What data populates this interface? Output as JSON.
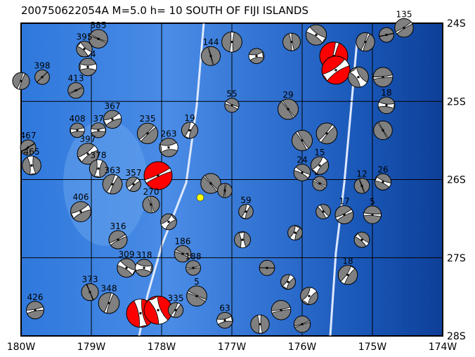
{
  "title": "200750622054A M=5.0 h= 10 SOUTH OF FIJI ISLANDS",
  "map": {
    "lon_range": [
      -180,
      -174
    ],
    "lat_range": [
      -28,
      -24
    ],
    "lon_ticks": [
      "180W",
      "179W",
      "178W",
      "177W",
      "176W",
      "175W",
      "174W"
    ],
    "lat_ticks": [
      "24S",
      "25S",
      "26S",
      "27S",
      "28S"
    ],
    "grid": true,
    "colors": {
      "shallow": "#5a9ae8",
      "deep": "#1448a8",
      "compression": "#808080",
      "latest_event": "#ff0000",
      "epicenter": "#ffff00",
      "trench": "#dde8ff"
    }
  },
  "epicenter": {
    "lon": -177.45,
    "lat": -26.23
  },
  "events": [
    {
      "lon": -179.05,
      "lat": -24.56,
      "label": "384"
    },
    {
      "lon": -179.22,
      "lat": -24.86,
      "label": "413"
    },
    {
      "lon": -179.7,
      "lat": -24.69,
      "label": "398"
    },
    {
      "lon": -180.0,
      "lat": -24.74,
      "label": ""
    },
    {
      "lon": -178.9,
      "lat": -24.2,
      "label": "385"
    },
    {
      "lon": -179.1,
      "lat": -24.33,
      "label": "395"
    },
    {
      "lon": -178.7,
      "lat": -25.23,
      "label": "367"
    },
    {
      "lon": -179.2,
      "lat": -25.37,
      "label": "408"
    },
    {
      "lon": -178.9,
      "lat": -25.37,
      "label": "37"
    },
    {
      "lon": -179.9,
      "lat": -25.59,
      "label": "467"
    },
    {
      "lon": -179.85,
      "lat": -25.82,
      "label": "465"
    },
    {
      "lon": -179.05,
      "lat": -25.67,
      "label": "397"
    },
    {
      "lon": -178.9,
      "lat": -25.86,
      "label": "378"
    },
    {
      "lon": -178.7,
      "lat": -26.06,
      "label": "363"
    },
    {
      "lon": -178.4,
      "lat": -26.06,
      "label": "357"
    },
    {
      "lon": -179.15,
      "lat": -26.41,
      "label": "406"
    },
    {
      "lon": -178.62,
      "lat": -26.77,
      "label": "316"
    },
    {
      "lon": -178.5,
      "lat": -27.13,
      "label": "309"
    },
    {
      "lon": -178.25,
      "lat": -27.13,
      "label": "318"
    },
    {
      "lon": -179.02,
      "lat": -27.44,
      "label": "373"
    },
    {
      "lon": -178.75,
      "lat": -27.58,
      "label": "348"
    },
    {
      "lon": -179.8,
      "lat": -27.67,
      "label": "426"
    },
    {
      "lon": -178.05,
      "lat": -25.95,
      "label": "",
      "red": true
    },
    {
      "lon": -178.3,
      "lat": -27.71,
      "label": "",
      "red": true
    },
    {
      "lon": -178.05,
      "lat": -27.67,
      "label": "",
      "red": true
    },
    {
      "lon": -175.55,
      "lat": -24.42,
      "label": "",
      "red": true
    },
    {
      "lon": -175.52,
      "lat": -24.6,
      "label": "",
      "red": true
    },
    {
      "lon": -178.2,
      "lat": -25.41,
      "label": "235"
    },
    {
      "lon": -177.9,
      "lat": -25.59,
      "label": "263"
    },
    {
      "lon": -177.6,
      "lat": -25.37,
      "label": "19"
    },
    {
      "lon": -178.15,
      "lat": -26.32,
      "label": "270"
    },
    {
      "lon": -177.9,
      "lat": -26.54,
      "label": ""
    },
    {
      "lon": -177.7,
      "lat": -26.95,
      "label": "186"
    },
    {
      "lon": -177.55,
      "lat": -27.13,
      "label": "188"
    },
    {
      "lon": -177.5,
      "lat": -27.49,
      "label": "5"
    },
    {
      "lon": -177.8,
      "lat": -27.67,
      "label": "335"
    },
    {
      "lon": -177.1,
      "lat": -27.8,
      "label": "63"
    },
    {
      "lon": -177.3,
      "lat": -24.42,
      "label": "144"
    },
    {
      "lon": -177.0,
      "lat": -24.24,
      "label": ""
    },
    {
      "lon": -176.65,
      "lat": -24.42,
      "label": ""
    },
    {
      "lon": -177.0,
      "lat": -25.05,
      "label": "55"
    },
    {
      "lon": -177.3,
      "lat": -26.05,
      "label": ""
    },
    {
      "lon": -177.1,
      "lat": -26.14,
      "label": ""
    },
    {
      "lon": -176.8,
      "lat": -26.41,
      "label": "59"
    },
    {
      "lon": -176.85,
      "lat": -26.77,
      "label": ""
    },
    {
      "lon": -176.5,
      "lat": -27.13,
      "label": ""
    },
    {
      "lon": -176.2,
      "lat": -27.31,
      "label": ""
    },
    {
      "lon": -175.9,
      "lat": -27.49,
      "label": ""
    },
    {
      "lon": -176.3,
      "lat": -27.67,
      "label": ""
    },
    {
      "lon": -176.0,
      "lat": -27.85,
      "label": ""
    },
    {
      "lon": -176.6,
      "lat": -27.85,
      "label": ""
    },
    {
      "lon": -176.1,
      "lat": -26.68,
      "label": ""
    },
    {
      "lon": -175.7,
      "lat": -26.41,
      "label": ""
    },
    {
      "lon": -175.75,
      "lat": -26.05,
      "label": "27"
    },
    {
      "lon": -176.0,
      "lat": -25.91,
      "label": "24"
    },
    {
      "lon": -175.75,
      "lat": -25.82,
      "label": "15"
    },
    {
      "lon": -176.2,
      "lat": -25.1,
      "label": "29"
    },
    {
      "lon": -176.0,
      "lat": -25.5,
      "label": ""
    },
    {
      "lon": -175.65,
      "lat": -25.41,
      "label": ""
    },
    {
      "lon": -176.15,
      "lat": -24.24,
      "label": ""
    },
    {
      "lon": -175.8,
      "lat": -24.15,
      "label": ""
    },
    {
      "lon": -175.1,
      "lat": -24.24,
      "label": ""
    },
    {
      "lon": -174.8,
      "lat": -24.15,
      "label": ""
    },
    {
      "lon": -174.55,
      "lat": -24.06,
      "label": "135"
    },
    {
      "lon": -174.85,
      "lat": -24.69,
      "label": ""
    },
    {
      "lon": -175.2,
      "lat": -24.69,
      "label": ""
    },
    {
      "lon": -174.8,
      "lat": -25.05,
      "label": "18"
    },
    {
      "lon": -174.85,
      "lat": -25.37,
      "label": ""
    },
    {
      "lon": -175.15,
      "lat": -26.08,
      "label": "12"
    },
    {
      "lon": -174.85,
      "lat": -26.03,
      "label": "26"
    },
    {
      "lon": -175.0,
      "lat": -26.45,
      "label": "5"
    },
    {
      "lon": -175.15,
      "lat": -26.77,
      "label": ""
    },
    {
      "lon": -175.35,
      "lat": -27.22,
      "label": "18"
    },
    {
      "lon": -175.4,
      "lat": -26.45,
      "label": "17"
    }
  ]
}
